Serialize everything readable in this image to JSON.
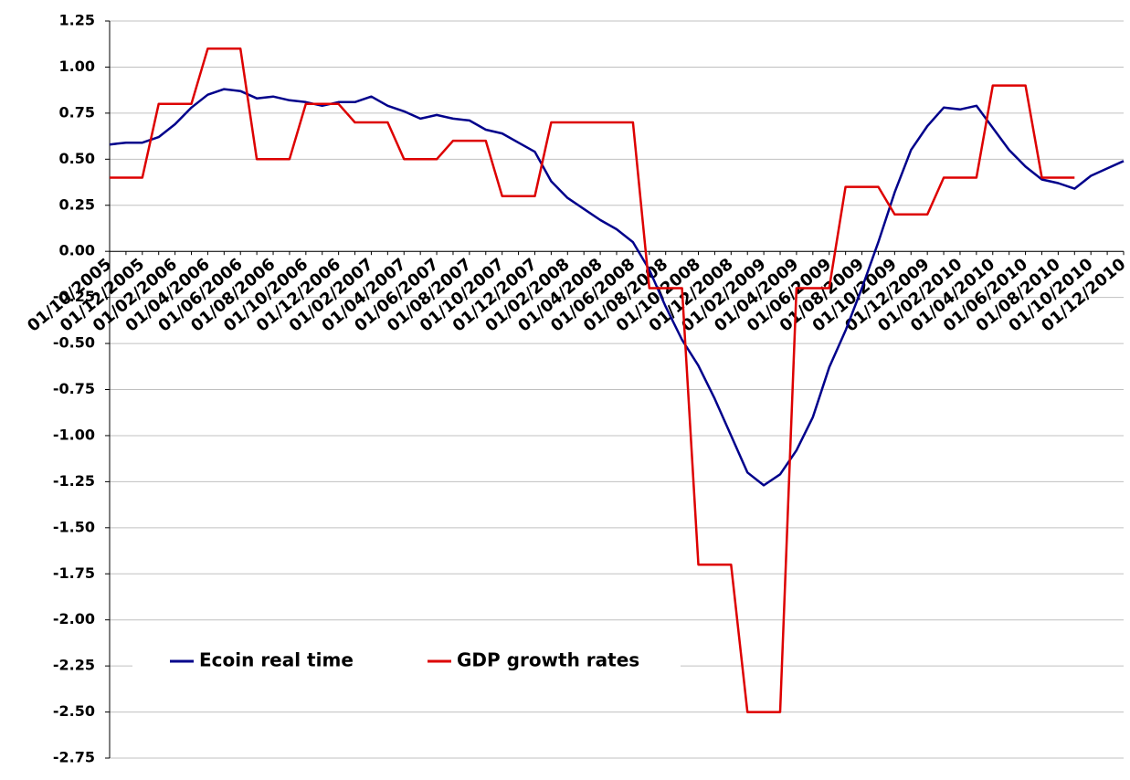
{
  "chart_data": {
    "type": "line",
    "categories": [
      "01/10/2005",
      null,
      "01/12/2005",
      null,
      "01/02/2006",
      null,
      "01/04/2006",
      null,
      "01/06/2006",
      null,
      "01/08/2006",
      null,
      "01/10/2006",
      null,
      "01/12/2006",
      null,
      "01/02/2007",
      null,
      "01/04/2007",
      null,
      "01/06/2007",
      null,
      "01/08/2007",
      null,
      "01/10/2007",
      null,
      "01/12/2007",
      null,
      "01/02/2008",
      null,
      "01/04/2008",
      null,
      "01/06/2008",
      null,
      "01/08/2008",
      null,
      "01/10/2008",
      null,
      "01/12/2008",
      null,
      "01/02/2009",
      null,
      "01/04/2009",
      null,
      "01/06/2009",
      null,
      "01/08/2009",
      null,
      "01/10/2009",
      null,
      "01/12/2009",
      null,
      "01/02/2010",
      null,
      "01/04/2010",
      null,
      "01/06/2010",
      null,
      "01/08/2010",
      null,
      "01/10/2010",
      null,
      "01/12/2010"
    ],
    "series": [
      {
        "name": "Ecoin real time",
        "color": "#00008b",
        "values": [
          0.58,
          0.59,
          0.59,
          0.62,
          0.69,
          0.78,
          0.85,
          0.88,
          0.87,
          0.83,
          0.84,
          0.82,
          0.81,
          0.79,
          0.81,
          0.81,
          0.84,
          0.79,
          0.76,
          0.72,
          0.74,
          0.72,
          0.71,
          0.66,
          0.64,
          0.59,
          0.54,
          0.38,
          0.29,
          0.23,
          0.17,
          0.12,
          0.05,
          -0.1,
          -0.3,
          -0.48,
          -0.62,
          -0.8,
          -1.0,
          -1.2,
          -1.27,
          -1.21,
          -1.08,
          -0.9,
          -0.63,
          -0.43,
          -0.2,
          0.05,
          0.32,
          0.55,
          0.68,
          0.78,
          0.77,
          0.79,
          0.67,
          0.55,
          0.46,
          0.39,
          0.37,
          0.34,
          0.41,
          0.45,
          0.49
        ]
      },
      {
        "name": "GDP growth rates",
        "color": "#dd0000",
        "values": [
          0.4,
          0.4,
          0.4,
          0.8,
          0.8,
          0.8,
          1.1,
          1.1,
          1.1,
          0.5,
          0.5,
          0.5,
          0.8,
          0.8,
          0.8,
          0.7,
          0.7,
          0.7,
          0.5,
          0.5,
          0.5,
          0.6,
          0.6,
          0.6,
          0.3,
          0.3,
          0.3,
          0.7,
          0.7,
          0.7,
          0.7,
          0.7,
          0.7,
          -0.2,
          -0.2,
          -0.2,
          -1.7,
          -1.7,
          -1.7,
          -2.5,
          -2.5,
          -2.5,
          -0.2,
          -0.2,
          -0.2,
          0.35,
          0.35,
          0.35,
          0.2,
          0.2,
          0.2,
          0.4,
          0.4,
          0.4,
          0.9,
          0.9,
          0.9,
          0.4,
          0.4,
          0.4,
          null,
          null,
          null
        ]
      }
    ],
    "ylim": [
      -2.75,
      1.25
    ],
    "yticks": [
      1.25,
      {
        "value": 1,
        "label": "1.00"
      },
      0.75,
      {
        "value": 0.5,
        "label": "0.50"
      },
      0.25,
      {
        "value": 0,
        "label": "0.00"
      },
      -0.25,
      {
        "value": -0.5,
        "label": "-0.50"
      },
      -0.75,
      {
        "value": -1,
        "label": "-1.00"
      },
      -1.25,
      {
        "value": -1.5,
        "label": "-1.50"
      },
      -1.75,
      {
        "value": -2,
        "label": "-2.00"
      },
      -2.25,
      {
        "value": -2.5,
        "label": "-2.50"
      },
      -2.75
    ],
    "grid": true,
    "legend": "bottom-left"
  }
}
